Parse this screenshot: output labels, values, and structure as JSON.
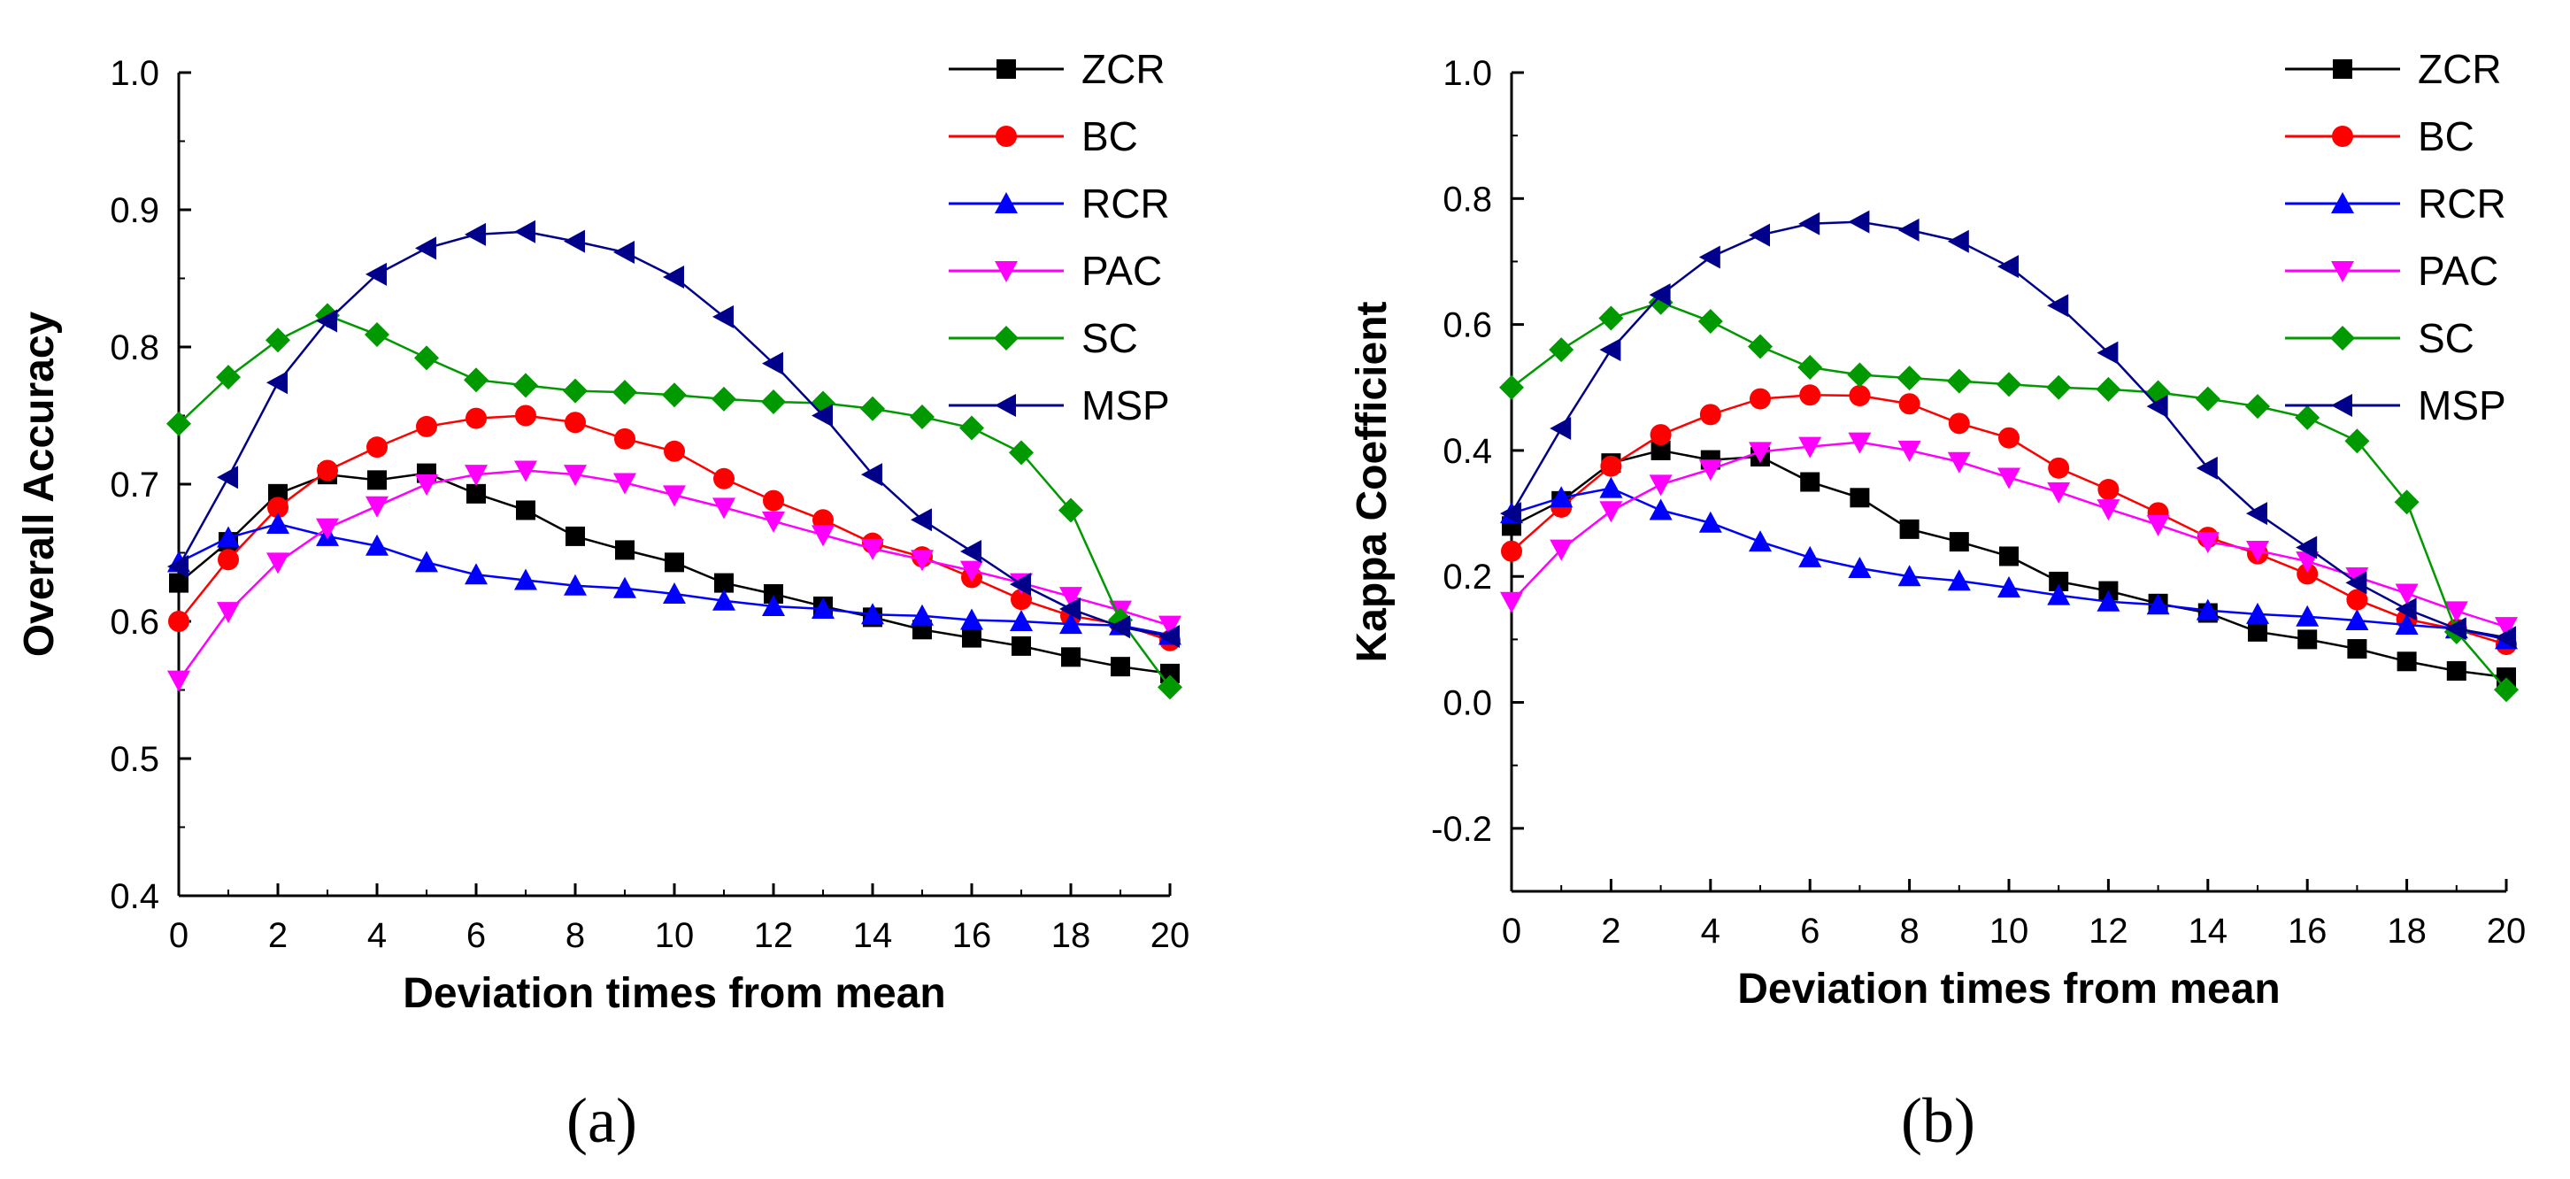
{
  "chart_data": [
    {
      "panel_label": "(a)",
      "type": "line",
      "title": "",
      "xlabel": "Deviation times from mean",
      "ylabel": "Overall Accuracy",
      "xlim": [
        0,
        20
      ],
      "ylim": [
        0.4,
        1.0
      ],
      "x_ticks": [
        0,
        2,
        4,
        6,
        8,
        10,
        12,
        14,
        16,
        18,
        20
      ],
      "y_ticks": [
        0.4,
        0.5,
        0.6,
        0.7,
        0.8,
        0.9,
        1.0
      ],
      "y_tick_labels": [
        "0.4",
        "0.5",
        "0.6",
        "0.7",
        "0.8",
        "0.9",
        "1.0"
      ],
      "legend_position": "top-right",
      "x": [
        0,
        1,
        2,
        3,
        4,
        5,
        6,
        7,
        8,
        9,
        10,
        11,
        12,
        13,
        14,
        15,
        16,
        17,
        18,
        19,
        20
      ],
      "series": [
        {
          "name": "ZCR",
          "color": "#000000",
          "marker": "square",
          "values": [
            0.628,
            0.658,
            0.693,
            0.707,
            0.703,
            0.708,
            0.693,
            0.681,
            0.662,
            0.652,
            0.643,
            0.628,
            0.62,
            0.611,
            0.603,
            0.594,
            0.588,
            0.582,
            0.574,
            0.567,
            0.562
          ]
        },
        {
          "name": "BC",
          "color": "#ff0000",
          "marker": "circle",
          "values": [
            0.6,
            0.645,
            0.683,
            0.71,
            0.727,
            0.742,
            0.748,
            0.75,
            0.745,
            0.733,
            0.724,
            0.704,
            0.688,
            0.674,
            0.657,
            0.647,
            0.632,
            0.616,
            0.604,
            0.598,
            0.586
          ]
        },
        {
          "name": "RCR",
          "color": "#0000ff",
          "marker": "triangle-up",
          "values": [
            0.643,
            0.661,
            0.671,
            0.662,
            0.655,
            0.643,
            0.634,
            0.63,
            0.626,
            0.624,
            0.62,
            0.615,
            0.611,
            0.609,
            0.605,
            0.604,
            0.601,
            0.6,
            0.598,
            0.597,
            0.59
          ]
        },
        {
          "name": "PAC",
          "color": "#ff00ff",
          "marker": "triangle-down",
          "values": [
            0.557,
            0.607,
            0.643,
            0.668,
            0.684,
            0.7,
            0.707,
            0.71,
            0.707,
            0.701,
            0.692,
            0.683,
            0.673,
            0.663,
            0.653,
            0.645,
            0.637,
            0.628,
            0.618,
            0.608,
            0.597
          ]
        },
        {
          "name": "SC",
          "color": "#009900",
          "marker": "diamond",
          "values": [
            0.744,
            0.778,
            0.805,
            0.823,
            0.809,
            0.792,
            0.776,
            0.772,
            0.768,
            0.767,
            0.765,
            0.762,
            0.76,
            0.759,
            0.755,
            0.749,
            0.741,
            0.723,
            0.681,
            0.601,
            0.552
          ]
        },
        {
          "name": "MSP",
          "color": "#00008b",
          "marker": "triangle-left",
          "values": [
            0.64,
            0.705,
            0.774,
            0.819,
            0.853,
            0.872,
            0.882,
            0.884,
            0.877,
            0.869,
            0.851,
            0.822,
            0.788,
            0.75,
            0.707,
            0.674,
            0.651,
            0.627,
            0.609,
            0.596,
            0.589
          ]
        }
      ]
    },
    {
      "panel_label": "(b)",
      "type": "line",
      "title": "",
      "xlabel": "Deviation times from mean",
      "ylabel": "Kappa Coefficient",
      "xlim": [
        0,
        20
      ],
      "ylim": [
        -0.3,
        1.0
      ],
      "x_ticks": [
        0,
        2,
        4,
        6,
        8,
        10,
        12,
        14,
        16,
        18,
        20
      ],
      "y_ticks": [
        -0.2,
        0.0,
        0.2,
        0.4,
        0.6,
        0.8,
        1.0
      ],
      "y_tick_labels": [
        "-0.2",
        "0.0",
        "0.2",
        "0.4",
        "0.6",
        "0.8",
        "1.0"
      ],
      "legend_position": "top-right",
      "x": [
        0,
        1,
        2,
        3,
        4,
        5,
        6,
        7,
        8,
        9,
        10,
        11,
        12,
        13,
        14,
        15,
        16,
        17,
        18,
        19,
        20
      ],
      "series": [
        {
          "name": "ZCR",
          "color": "#000000",
          "marker": "square",
          "values": [
            0.28,
            0.32,
            0.38,
            0.4,
            0.385,
            0.39,
            0.35,
            0.325,
            0.275,
            0.255,
            0.232,
            0.192,
            0.177,
            0.157,
            0.142,
            0.112,
            0.1,
            0.085,
            0.065,
            0.05,
            0.04
          ]
        },
        {
          "name": "BC",
          "color": "#ff0000",
          "marker": "circle",
          "values": [
            0.24,
            0.31,
            0.375,
            0.425,
            0.457,
            0.482,
            0.488,
            0.487,
            0.474,
            0.443,
            0.42,
            0.372,
            0.338,
            0.301,
            0.262,
            0.236,
            0.204,
            0.163,
            0.132,
            0.116,
            0.092
          ]
        },
        {
          "name": "RCR",
          "color": "#0000ff",
          "marker": "triangle-up",
          "values": [
            0.3,
            0.325,
            0.34,
            0.305,
            0.285,
            0.255,
            0.23,
            0.213,
            0.2,
            0.193,
            0.182,
            0.17,
            0.16,
            0.155,
            0.146,
            0.14,
            0.136,
            0.13,
            0.123,
            0.117,
            0.1
          ]
        },
        {
          "name": "PAC",
          "color": "#ff00ff",
          "marker": "triangle-down",
          "values": [
            0.16,
            0.243,
            0.304,
            0.346,
            0.37,
            0.398,
            0.406,
            0.413,
            0.4,
            0.382,
            0.357,
            0.334,
            0.307,
            0.282,
            0.255,
            0.241,
            0.224,
            0.199,
            0.173,
            0.145,
            0.12
          ]
        },
        {
          "name": "SC",
          "color": "#009900",
          "marker": "diamond",
          "values": [
            0.5,
            0.56,
            0.61,
            0.635,
            0.605,
            0.565,
            0.532,
            0.52,
            0.515,
            0.51,
            0.505,
            0.5,
            0.497,
            0.492,
            0.482,
            0.47,
            0.452,
            0.415,
            0.318,
            0.112,
            0.02
          ]
        },
        {
          "name": "MSP",
          "color": "#00008b",
          "marker": "triangle-left",
          "values": [
            0.3,
            0.435,
            0.56,
            0.647,
            0.707,
            0.742,
            0.76,
            0.763,
            0.75,
            0.732,
            0.692,
            0.63,
            0.555,
            0.47,
            0.372,
            0.3,
            0.246,
            0.19,
            0.148,
            0.117,
            0.103
          ]
        }
      ]
    }
  ]
}
